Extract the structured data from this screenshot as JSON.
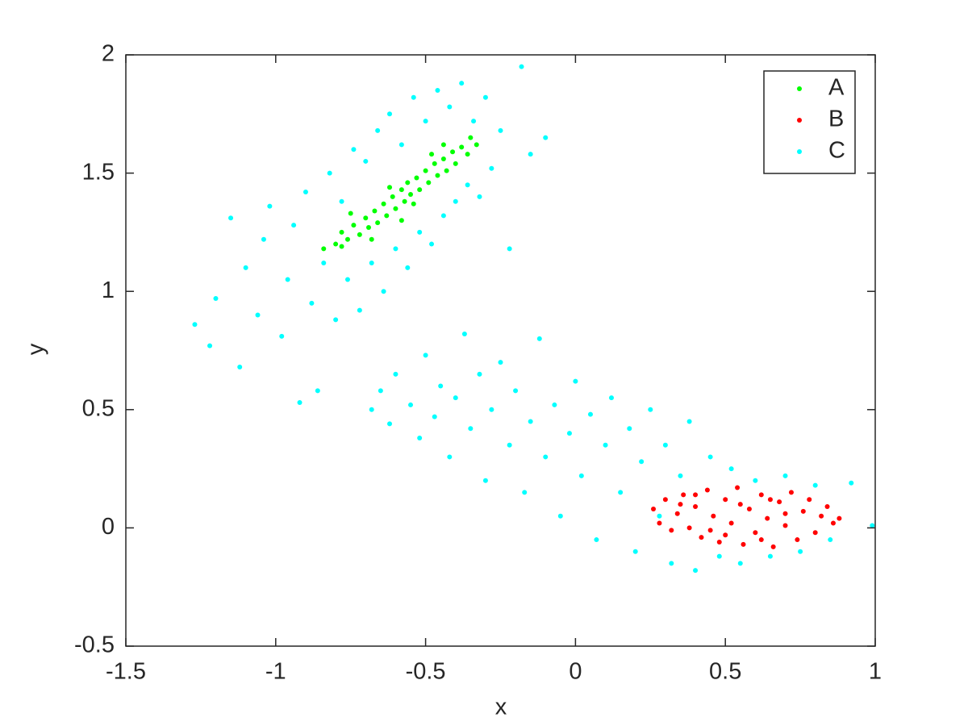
{
  "chart_data": {
    "type": "scatter",
    "xlabel": "x",
    "ylabel": "y",
    "xlim": [
      -1.5,
      1
    ],
    "ylim": [
      -0.5,
      2
    ],
    "xticks": [
      -1.5,
      -1,
      -0.5,
      0,
      0.5,
      1
    ],
    "yticks": [
      -0.5,
      0,
      0.5,
      1,
      1.5,
      2
    ],
    "grid": false,
    "legend_position": "upper-right",
    "series": [
      {
        "name": "A",
        "color": "#00ff00",
        "x": [
          -0.84,
          -0.8,
          -0.78,
          -0.76,
          -0.74,
          -0.72,
          -0.7,
          -0.69,
          -0.67,
          -0.66,
          -0.64,
          -0.63,
          -0.61,
          -0.6,
          -0.58,
          -0.57,
          -0.56,
          -0.55,
          -0.53,
          -0.52,
          -0.5,
          -0.49,
          -0.47,
          -0.46,
          -0.44,
          -0.43,
          -0.41,
          -0.4,
          -0.38,
          -0.36,
          -0.35,
          -0.33,
          -0.78,
          -0.62,
          -0.54,
          -0.48,
          -0.68,
          -0.44,
          -0.75,
          -0.58
        ],
        "y": [
          1.18,
          1.2,
          1.25,
          1.22,
          1.28,
          1.24,
          1.31,
          1.27,
          1.34,
          1.29,
          1.37,
          1.32,
          1.4,
          1.35,
          1.43,
          1.38,
          1.46,
          1.41,
          1.48,
          1.43,
          1.51,
          1.46,
          1.54,
          1.49,
          1.56,
          1.51,
          1.59,
          1.54,
          1.61,
          1.58,
          1.65,
          1.62,
          1.19,
          1.44,
          1.37,
          1.58,
          1.22,
          1.62,
          1.33,
          1.3
        ]
      },
      {
        "name": "B",
        "color": "#ff0000",
        "x": [
          0.26,
          0.28,
          0.3,
          0.32,
          0.34,
          0.36,
          0.38,
          0.4,
          0.42,
          0.44,
          0.46,
          0.48,
          0.5,
          0.52,
          0.54,
          0.56,
          0.58,
          0.6,
          0.62,
          0.64,
          0.66,
          0.68,
          0.7,
          0.72,
          0.74,
          0.76,
          0.78,
          0.8,
          0.82,
          0.84,
          0.86,
          0.88,
          0.35,
          0.45,
          0.55,
          0.65,
          0.62,
          0.7,
          0.4,
          0.5
        ],
        "y": [
          0.08,
          0.02,
          0.12,
          -0.01,
          0.06,
          0.14,
          0.0,
          0.09,
          -0.04,
          0.16,
          0.05,
          -0.06,
          0.12,
          0.02,
          0.17,
          -0.07,
          0.08,
          -0.02,
          0.14,
          0.04,
          -0.08,
          0.11,
          0.01,
          0.15,
          -0.05,
          0.07,
          0.12,
          -0.02,
          0.05,
          0.09,
          0.02,
          0.04,
          0.1,
          -0.01,
          0.1,
          0.12,
          -0.05,
          0.06,
          0.14,
          -0.03
        ]
      },
      {
        "name": "C",
        "color": "#00ffff",
        "x": [
          -1.27,
          -1.22,
          -1.2,
          -1.15,
          -1.12,
          -1.1,
          -1.06,
          -1.04,
          -1.02,
          -0.98,
          -0.96,
          -0.94,
          -0.92,
          -0.9,
          -0.88,
          -0.86,
          -0.84,
          -0.82,
          -0.8,
          -0.78,
          -0.76,
          -0.74,
          -0.72,
          -0.7,
          -0.68,
          -0.66,
          -0.64,
          -0.62,
          -0.6,
          -0.58,
          -0.56,
          -0.54,
          -0.52,
          -0.5,
          -0.48,
          -0.46,
          -0.44,
          -0.42,
          -0.4,
          -0.38,
          -0.36,
          -0.34,
          -0.32,
          -0.3,
          -0.28,
          -0.25,
          -0.22,
          -0.18,
          -0.15,
          -0.1,
          -0.68,
          -0.65,
          -0.62,
          -0.6,
          -0.55,
          -0.52,
          -0.5,
          -0.47,
          -0.45,
          -0.42,
          -0.4,
          -0.37,
          -0.35,
          -0.32,
          -0.3,
          -0.28,
          -0.25,
          -0.22,
          -0.2,
          -0.17,
          -0.15,
          -0.12,
          -0.1,
          -0.07,
          -0.05,
          -0.02,
          0.0,
          0.02,
          0.05,
          0.07,
          0.1,
          0.12,
          0.15,
          0.18,
          0.2,
          0.22,
          0.25,
          0.28,
          0.3,
          0.32,
          0.35,
          0.38,
          0.4,
          0.45,
          0.48,
          0.52,
          0.55,
          0.6,
          0.65,
          0.7,
          0.75,
          0.8,
          0.85,
          0.92,
          0.99
        ],
        "y": [
          0.86,
          0.77,
          0.97,
          1.31,
          0.68,
          1.1,
          0.9,
          1.22,
          1.36,
          0.81,
          1.05,
          1.28,
          0.53,
          1.42,
          0.95,
          0.58,
          1.12,
          1.5,
          0.88,
          1.38,
          1.05,
          1.6,
          0.92,
          1.55,
          1.12,
          1.68,
          1.0,
          1.75,
          1.18,
          1.62,
          1.1,
          1.82,
          1.25,
          1.72,
          1.2,
          1.85,
          1.32,
          1.78,
          1.38,
          1.88,
          1.45,
          1.72,
          1.4,
          1.82,
          1.52,
          1.68,
          1.18,
          1.95,
          1.58,
          1.65,
          0.5,
          0.58,
          0.44,
          0.65,
          0.52,
          0.38,
          0.73,
          0.47,
          0.6,
          0.3,
          0.55,
          0.82,
          0.42,
          0.65,
          0.2,
          0.5,
          0.7,
          0.35,
          0.58,
          0.15,
          0.45,
          0.8,
          0.3,
          0.52,
          0.05,
          0.4,
          0.62,
          0.22,
          0.48,
          -0.05,
          0.35,
          0.55,
          0.15,
          0.42,
          -0.1,
          0.28,
          0.5,
          0.05,
          0.35,
          -0.15,
          0.22,
          0.45,
          -0.18,
          0.3,
          -0.12,
          0.25,
          -0.15,
          0.2,
          -0.12,
          0.22,
          -0.1,
          0.18,
          -0.05,
          0.19,
          0.01
        ]
      }
    ]
  }
}
